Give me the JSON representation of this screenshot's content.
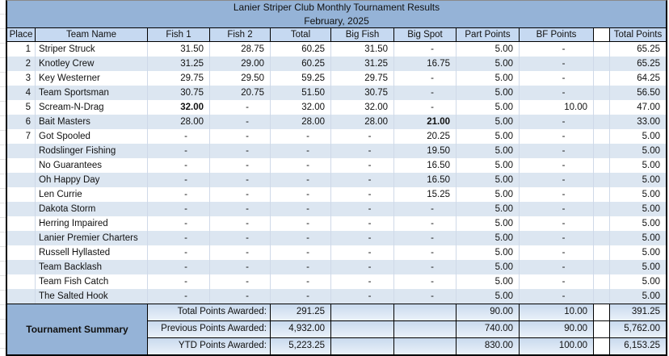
{
  "header": {
    "title": "Lanier Striper Club Monthly Tournament Results",
    "subtitle": "February, 2025"
  },
  "columns": [
    "Place",
    "Team Name",
    "Fish 1",
    "Fish 2",
    "Total",
    "Big Fish",
    "Big Spot",
    "Part Points",
    "BF Points",
    "",
    "Total Points"
  ],
  "rows": [
    {
      "place": "1",
      "team": "Striper Struck",
      "fish1": "31.50",
      "fish2": "28.75",
      "total": "60.25",
      "big_fish": "31.50",
      "big_spot": "-",
      "part_points": "5.00",
      "bf_points": "-",
      "total_points": "65.25",
      "bold": []
    },
    {
      "place": "2",
      "team": "Knotley Crew",
      "fish1": "31.25",
      "fish2": "29.00",
      "total": "60.25",
      "big_fish": "31.25",
      "big_spot": "16.75",
      "part_points": "5.00",
      "bf_points": "-",
      "total_points": "65.25",
      "bold": []
    },
    {
      "place": "3",
      "team": "Key Westerner",
      "fish1": "29.75",
      "fish2": "29.50",
      "total": "59.25",
      "big_fish": "29.75",
      "big_spot": "-",
      "part_points": "5.00",
      "bf_points": "-",
      "total_points": "64.25",
      "bold": []
    },
    {
      "place": "4",
      "team": "Team Sportsman",
      "fish1": "30.75",
      "fish2": "20.75",
      "total": "51.50",
      "big_fish": "30.75",
      "big_spot": "-",
      "part_points": "5.00",
      "bf_points": "-",
      "total_points": "56.50",
      "bold": []
    },
    {
      "place": "5",
      "team": "Scream-N-Drag",
      "fish1": "32.00",
      "fish2": "-",
      "total": "32.00",
      "big_fish": "32.00",
      "big_spot": "-",
      "part_points": "5.00",
      "bf_points": "10.00",
      "total_points": "47.00",
      "bold": [
        "fish1"
      ]
    },
    {
      "place": "6",
      "team": "Bait Masters",
      "fish1": "28.00",
      "fish2": "-",
      "total": "28.00",
      "big_fish": "28.00",
      "big_spot": "21.00",
      "part_points": "5.00",
      "bf_points": "-",
      "total_points": "33.00",
      "bold": [
        "big_spot"
      ]
    },
    {
      "place": "7",
      "team": "Got Spooled",
      "fish1": "-",
      "fish2": "-",
      "total": "-",
      "big_fish": "-",
      "big_spot": "20.25",
      "part_points": "5.00",
      "bf_points": "-",
      "total_points": "5.00",
      "bold": []
    },
    {
      "place": "",
      "team": "Rodslinger Fishing",
      "fish1": "-",
      "fish2": "-",
      "total": "-",
      "big_fish": "-",
      "big_spot": "19.50",
      "part_points": "5.00",
      "bf_points": "-",
      "total_points": "5.00",
      "bold": []
    },
    {
      "place": "",
      "team": "No Guarantees",
      "fish1": "-",
      "fish2": "-",
      "total": "-",
      "big_fish": "-",
      "big_spot": "16.50",
      "part_points": "5.00",
      "bf_points": "-",
      "total_points": "5.00",
      "bold": []
    },
    {
      "place": "",
      "team": "Oh Happy Day",
      "fish1": "-",
      "fish2": "-",
      "total": "-",
      "big_fish": "-",
      "big_spot": "16.50",
      "part_points": "5.00",
      "bf_points": "-",
      "total_points": "5.00",
      "bold": []
    },
    {
      "place": "",
      "team": "Len Currie",
      "fish1": "-",
      "fish2": "-",
      "total": "-",
      "big_fish": "-",
      "big_spot": "15.25",
      "part_points": "5.00",
      "bf_points": "-",
      "total_points": "5.00",
      "bold": []
    },
    {
      "place": "",
      "team": "Dakota Storm",
      "fish1": "-",
      "fish2": "-",
      "total": "-",
      "big_fish": "-",
      "big_spot": "-",
      "part_points": "5.00",
      "bf_points": "-",
      "total_points": "5.00",
      "bold": []
    },
    {
      "place": "",
      "team": "Herring Impaired",
      "fish1": "-",
      "fish2": "-",
      "total": "-",
      "big_fish": "-",
      "big_spot": "-",
      "part_points": "5.00",
      "bf_points": "-",
      "total_points": "5.00",
      "bold": []
    },
    {
      "place": "",
      "team": "Lanier Premier Charters",
      "fish1": "-",
      "fish2": "-",
      "total": "-",
      "big_fish": "-",
      "big_spot": "-",
      "part_points": "5.00",
      "bf_points": "-",
      "total_points": "5.00",
      "bold": []
    },
    {
      "place": "",
      "team": "Russell Hyllasted",
      "fish1": "-",
      "fish2": "-",
      "total": "-",
      "big_fish": "-",
      "big_spot": "-",
      "part_points": "5.00",
      "bf_points": "-",
      "total_points": "5.00",
      "bold": []
    },
    {
      "place": "",
      "team": "Team Backlash",
      "fish1": "-",
      "fish2": "-",
      "total": "-",
      "big_fish": "-",
      "big_spot": "-",
      "part_points": "5.00",
      "bf_points": "-",
      "total_points": "5.00",
      "bold": []
    },
    {
      "place": "",
      "team": "Team Fish Catch",
      "fish1": "-",
      "fish2": "-",
      "total": "-",
      "big_fish": "-",
      "big_spot": "-",
      "part_points": "5.00",
      "bf_points": "-",
      "total_points": "5.00",
      "bold": []
    },
    {
      "place": "",
      "team": "The Salted Hook",
      "fish1": "-",
      "fish2": "-",
      "total": "-",
      "big_fish": "-",
      "big_spot": "-",
      "part_points": "5.00",
      "bf_points": "-",
      "total_points": "5.00",
      "bold": []
    }
  ],
  "summary": {
    "title": "Tournament Summary",
    "rows": [
      {
        "label": "Total Points Awarded:",
        "total": "291.25",
        "part_points": "90.00",
        "bf_points": "10.00",
        "total_points": "391.25"
      },
      {
        "label": "Previous Points Awarded:",
        "total": "4,932.00",
        "part_points": "740.00",
        "bf_points": "90.00",
        "total_points": "5,762.00"
      },
      {
        "label": "YTD Points Awarded:",
        "total": "5,223.25",
        "part_points": "830.00",
        "bf_points": "100.00",
        "total_points": "6,153.25"
      }
    ]
  },
  "colors": {
    "title_bg": "#95b3d7",
    "header_bg": "#c6d9f1",
    "band_bg": "#dce6f1",
    "summary_cell_top": "#c9daee",
    "summary_cell_bottom": "#eaf1f9",
    "border": "#000000"
  }
}
